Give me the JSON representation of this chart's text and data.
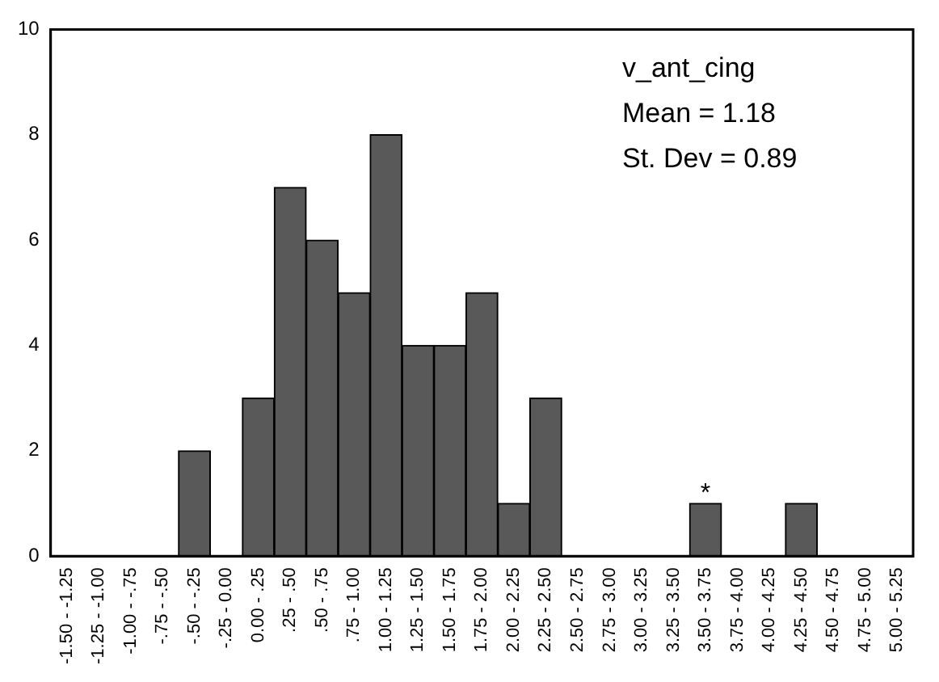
{
  "chart_data": {
    "type": "bar",
    "categories": [
      "-1.50 - -1.25",
      "-1.25 - -1.00",
      "-1.00 - -.75",
      "-.75 - -.50",
      "-.50 - -.25",
      "-.25 - 0.00",
      "0.00 - .25",
      ".25 - .50",
      ".50 - .75",
      ".75 - 1.00",
      "1.00 - 1.25",
      "1.25 - 1.50",
      "1.50 - 1.75",
      "1.75 - 2.00",
      "2.00 - 2.25",
      "2.25 - 2.50",
      "2.50 - 2.75",
      "2.75 - 3.00",
      "3.00 - 3.25",
      "3.25 - 3.50",
      "3.50 - 3.75",
      "3.75 - 4.00",
      "4.00 - 4.25",
      "4.25 - 4.50",
      "4.50 - 4.75",
      "4.75 - 5.00",
      "5.00 - 5.25"
    ],
    "values": [
      0,
      0,
      0,
      0,
      2,
      0,
      3,
      7,
      6,
      5,
      8,
      4,
      4,
      5,
      1,
      3,
      0,
      0,
      0,
      0,
      1,
      0,
      0,
      1,
      0,
      0,
      0
    ],
    "color": "#595959",
    "ylim": [
      0,
      10
    ],
    "yticks": [
      0,
      2,
      4,
      6,
      8,
      10
    ],
    "grid": false,
    "legend": false,
    "annotations": [
      "v_ant_cing",
      "Mean = 1.18",
      "St. Dev = 0.89",
      {
        "text": "*",
        "x": "3.50 - 3.75",
        "y": 1
      }
    ]
  }
}
